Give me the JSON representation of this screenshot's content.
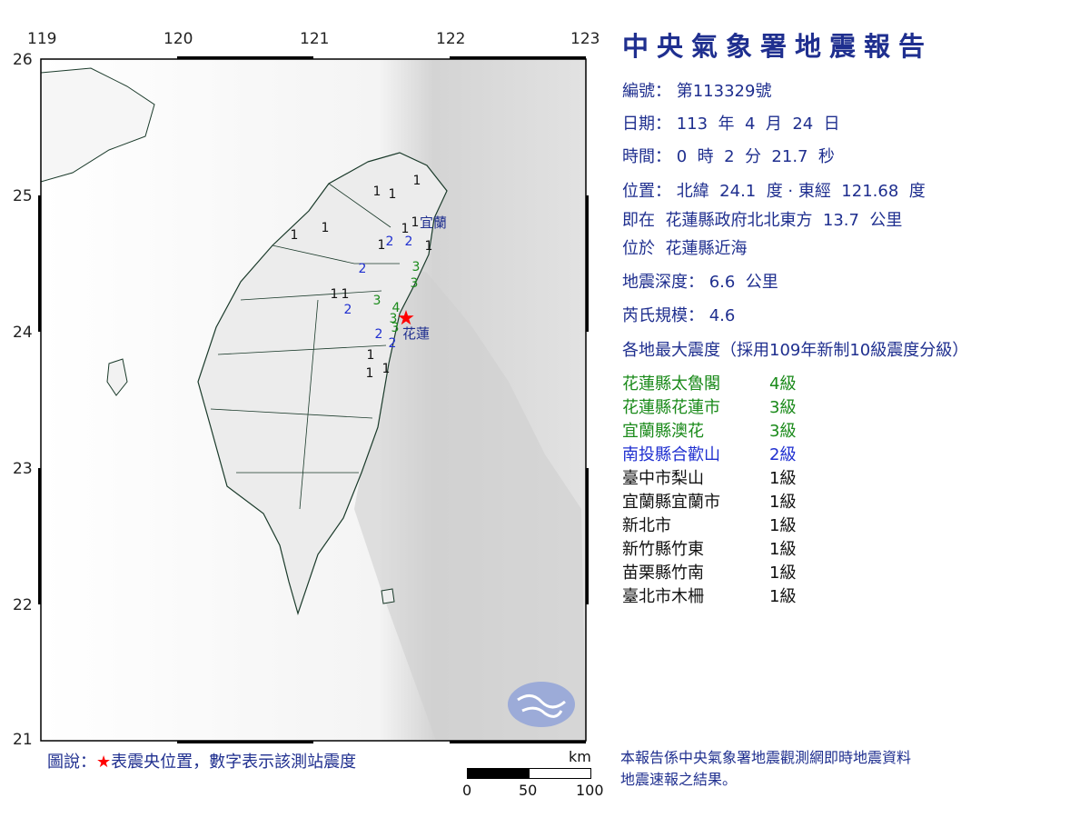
{
  "report": {
    "title": "中央氣象署地震報告",
    "number_label": "編號：",
    "number": "第113329號",
    "date_label": "日期：",
    "date": "113  年  4  月  24  日",
    "time_label": "時間：",
    "time": "0  時  2  分  21.7  秒",
    "location_label": "位置：",
    "location": "北緯  24.1  度 · 東經  121.68  度",
    "relative_label": "即在",
    "relative": "花蓮縣政府北北東方  13.7  公里",
    "region_label": "位於",
    "region": "花蓮縣近海",
    "depth_label": "地震深度：",
    "depth": "6.6  公里",
    "magnitude_label": "芮氏規模：",
    "magnitude": "4.6",
    "intensity_heading": "各地最大震度（採用109年新制10級震度分級）"
  },
  "intensities": [
    {
      "place": "花蓮縣太魯閣",
      "level": "4級",
      "color": "#1a8a1a"
    },
    {
      "place": "花蓮縣花蓮市",
      "level": "3級",
      "color": "#1a8a1a"
    },
    {
      "place": "宜蘭縣澳花",
      "level": "3級",
      "color": "#1a8a1a"
    },
    {
      "place": "南投縣合歡山",
      "level": "2級",
      "color": "#1f2fd0"
    },
    {
      "place": "臺中市梨山",
      "level": "1級",
      "color": "#111111"
    },
    {
      "place": "宜蘭縣宜蘭市",
      "level": "1級",
      "color": "#111111"
    },
    {
      "place": "新北市",
      "level": "1級",
      "color": "#111111"
    },
    {
      "place": "新竹縣竹東",
      "level": "1級",
      "color": "#111111"
    },
    {
      "place": "苗栗縣竹南",
      "level": "1級",
      "color": "#111111"
    },
    {
      "place": "臺北市木柵",
      "level": "1級",
      "color": "#111111"
    }
  ],
  "map": {
    "lon_ticks": [
      "119",
      "120",
      "121",
      "122",
      "123"
    ],
    "lat_ticks": [
      "26",
      "25",
      "24",
      "23",
      "22",
      "21"
    ],
    "epicenter": {
      "lat": 24.1,
      "lon": 121.68
    },
    "city_labels": [
      "宜蘭",
      "花蓮"
    ],
    "station_values": [
      "1",
      "1",
      "1",
      "1",
      "1",
      "1",
      "1",
      "1",
      "2",
      "2",
      "1",
      "2",
      "3",
      "3",
      "1",
      "1",
      "3",
      "2",
      "4",
      "3",
      "3",
      "2",
      "2",
      "1",
      "1",
      "1"
    ]
  },
  "legend": {
    "text_prefix": "圖說：",
    "star": "★",
    "text": "表震央位置，數字表示該測站震度"
  },
  "scale": {
    "unit": "km",
    "labels": [
      "0",
      "50",
      "100"
    ]
  },
  "note": [
    "本報告係中央氣象署地震觀測網即時地震資料",
    "地震速報之結果。"
  ],
  "colors": {
    "text": "#1f2f8f",
    "epicenter": "#ff0000",
    "level4": "#1a8a1a",
    "level3": "#1a8a1a",
    "level2": "#1f2fd0",
    "level1": "#111111"
  }
}
